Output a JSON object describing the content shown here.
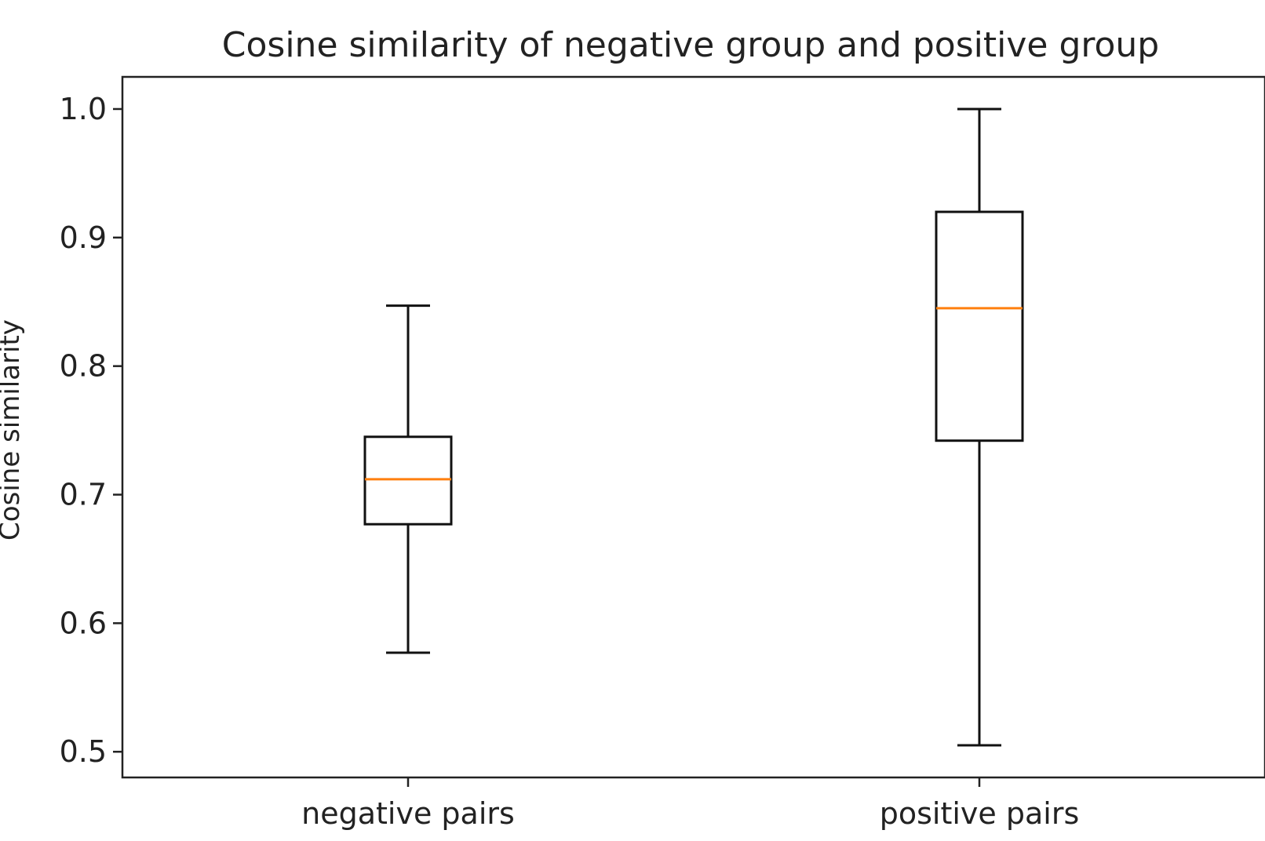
{
  "chart_data": {
    "type": "boxplot",
    "title": "Cosine similarity of negative group and positive group",
    "xlabel": "",
    "ylabel": "Cosine similarity",
    "ylim": [
      0.48,
      1.025
    ],
    "yticks": [
      0.5,
      0.6,
      0.7,
      0.8,
      0.9,
      1.0
    ],
    "ytick_labels": [
      "0.5",
      "0.6",
      "0.7",
      "0.8",
      "0.9",
      "1.0"
    ],
    "categories": [
      "negative pairs",
      "positive pairs"
    ],
    "boxes": [
      {
        "category": "negative pairs",
        "whislo": 0.577,
        "q1": 0.677,
        "median": 0.712,
        "q3": 0.745,
        "whishi": 0.847
      },
      {
        "category": "positive pairs",
        "whislo": 0.505,
        "q1": 0.742,
        "median": 0.845,
        "q3": 0.92,
        "whishi": 1.0
      }
    ],
    "grid": false,
    "colors": {
      "box": "#111111",
      "median": "#ff7f0e",
      "axis": "#222222"
    }
  }
}
